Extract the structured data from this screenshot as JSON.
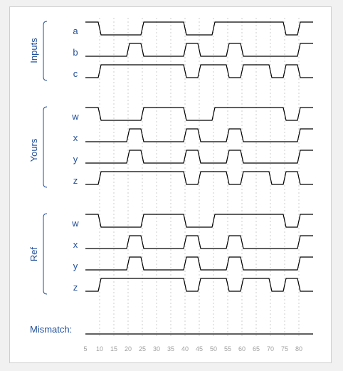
{
  "colors": {
    "label": "#1f4e98",
    "wave": "#000000",
    "grid": "#cccccc",
    "axis_text": "#a0a0a0"
  },
  "time_axis": {
    "start": 5,
    "end": 85,
    "ticks": [
      5,
      10,
      15,
      20,
      25,
      30,
      35,
      40,
      45,
      50,
      55,
      60,
      65,
      70,
      75,
      80
    ]
  },
  "groups": [
    {
      "label": "Inputs",
      "signals": [
        {
          "name": "a",
          "transitions": [
            [
              5,
              1
            ],
            [
              10,
              0
            ],
            [
              25,
              1
            ],
            [
              40,
              0
            ],
            [
              45,
              0
            ],
            [
              50,
              1
            ],
            [
              75,
              0
            ],
            [
              80,
              1
            ]
          ]
        },
        {
          "name": "b",
          "transitions": [
            [
              5,
              0
            ],
            [
              20,
              1
            ],
            [
              25,
              0
            ],
            [
              40,
              1
            ],
            [
              45,
              0
            ],
            [
              55,
              1
            ],
            [
              60,
              0
            ],
            [
              80,
              1
            ]
          ]
        },
        {
          "name": "c",
          "transitions": [
            [
              5,
              0
            ],
            [
              10,
              1
            ],
            [
              40,
              0
            ],
            [
              45,
              1
            ],
            [
              55,
              0
            ],
            [
              60,
              1
            ],
            [
              70,
              0
            ],
            [
              75,
              1
            ],
            [
              80,
              0
            ]
          ]
        }
      ]
    },
    {
      "label": "Yours",
      "signals": [
        {
          "name": "w",
          "transitions": [
            [
              5,
              1
            ],
            [
              10,
              0
            ],
            [
              25,
              1
            ],
            [
              40,
              0
            ],
            [
              45,
              0
            ],
            [
              50,
              1
            ],
            [
              75,
              0
            ],
            [
              80,
              1
            ]
          ]
        },
        {
          "name": "x",
          "transitions": [
            [
              5,
              0
            ],
            [
              20,
              1
            ],
            [
              25,
              0
            ],
            [
              40,
              1
            ],
            [
              45,
              0
            ],
            [
              55,
              1
            ],
            [
              60,
              0
            ],
            [
              80,
              1
            ]
          ]
        },
        {
          "name": "y",
          "transitions": [
            [
              5,
              0
            ],
            [
              20,
              1
            ],
            [
              25,
              0
            ],
            [
              40,
              1
            ],
            [
              45,
              0
            ],
            [
              55,
              1
            ],
            [
              60,
              0
            ],
            [
              80,
              1
            ]
          ]
        },
        {
          "name": "z",
          "transitions": [
            [
              5,
              0
            ],
            [
              10,
              1
            ],
            [
              40,
              0
            ],
            [
              45,
              1
            ],
            [
              55,
              0
            ],
            [
              60,
              1
            ],
            [
              70,
              0
            ],
            [
              75,
              1
            ],
            [
              80,
              0
            ]
          ]
        }
      ]
    },
    {
      "label": "Ref",
      "signals": [
        {
          "name": "w",
          "transitions": [
            [
              5,
              1
            ],
            [
              10,
              0
            ],
            [
              25,
              1
            ],
            [
              40,
              0
            ],
            [
              45,
              0
            ],
            [
              50,
              1
            ],
            [
              75,
              0
            ],
            [
              80,
              1
            ]
          ]
        },
        {
          "name": "x",
          "transitions": [
            [
              5,
              0
            ],
            [
              20,
              1
            ],
            [
              25,
              0
            ],
            [
              40,
              1
            ],
            [
              45,
              0
            ],
            [
              55,
              1
            ],
            [
              60,
              0
            ],
            [
              80,
              1
            ]
          ]
        },
        {
          "name": "y",
          "transitions": [
            [
              5,
              0
            ],
            [
              20,
              1
            ],
            [
              25,
              0
            ],
            [
              40,
              1
            ],
            [
              45,
              0
            ],
            [
              55,
              1
            ],
            [
              60,
              0
            ],
            [
              80,
              1
            ]
          ]
        },
        {
          "name": "z",
          "transitions": [
            [
              5,
              0
            ],
            [
              10,
              1
            ],
            [
              40,
              0
            ],
            [
              45,
              1
            ],
            [
              55,
              0
            ],
            [
              60,
              1
            ],
            [
              70,
              0
            ],
            [
              75,
              1
            ],
            [
              80,
              0
            ]
          ]
        }
      ]
    }
  ],
  "mismatch": {
    "label": "Mismatch:",
    "transitions": [
      [
        5,
        0
      ]
    ]
  }
}
